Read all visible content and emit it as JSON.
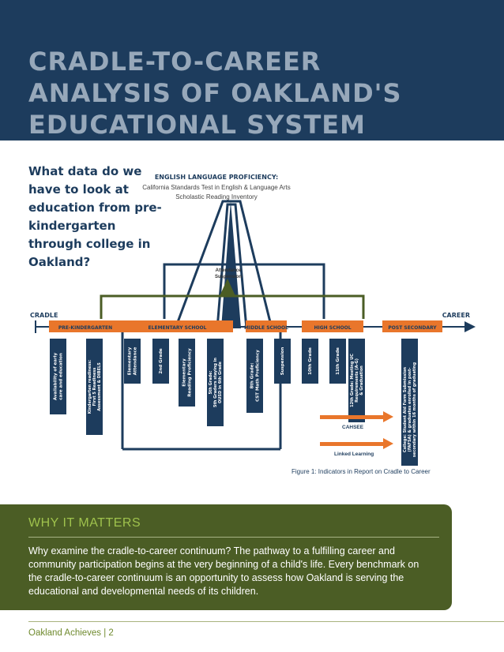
{
  "title_lines": [
    "CRADLE-TO-CAREER",
    "ANALYSIS OF OAKLAND'S",
    "EDUCATIONAL SYSTEM"
  ],
  "question": "What data do we have to look at education from pre-kindergarten through college in Oakland?",
  "diagram": {
    "top_title": "ENGLISH LANGUAGE PROFICIENCY:",
    "top_line1": "California Standards Test in English & Language Arts",
    "top_line2": "Scholastic Reading Inventory",
    "center_line1": "Attendance",
    "center_line2": "Suspension",
    "cradle": "CRADLE",
    "career": "CAREER",
    "stages": [
      "PRE-KINDERGARTEN",
      "ELEMENTARY SCHOOL",
      "MIDDLE SCHOOL",
      "HIGH SCHOOL",
      "POST SECONDARY"
    ],
    "indicators": [
      [
        "Availability of early",
        "care and education"
      ],
      [
        "Kindergarten readiness:",
        "First 5 Readiness",
        "Assessment & DIBELS"
      ],
      [
        "Elementary",
        "Attendance"
      ],
      [
        "2nd Grade"
      ],
      [
        "Elementary",
        "Reading Proficiency"
      ],
      [
        "5th Grade:",
        "5th Graders staying in",
        "OUSD in 6th Grade"
      ],
      [
        "8th Grade:",
        "CST Math Proficiency"
      ],
      [
        "Suspension"
      ],
      [
        "10th Grade"
      ],
      [
        "11th Grade"
      ],
      [
        "12th Grade: Meeting UC",
        "Requirements (A-G)",
        "& Graduation"
      ],
      [
        "College: Student Aid Form Submission",
        "(FAFSA) & graduates enrolled in post-",
        "secondary within 16 months of graduating"
      ]
    ],
    "cahsee": "CAHSEE",
    "linked_learning": "Linked Learning",
    "colors": {
      "navy": "#1d3c5d",
      "green": "#4b5d25",
      "orange": "#e9762b"
    }
  },
  "caption": "Figure 1: Indicators in Report on Cradle to Career",
  "why": {
    "title": "WHY IT MATTERS",
    "body": "Why examine the cradle-to-career continuum? The pathway to a fulfilling career and community participation begins at the very beginning of a child's life. Every benchmark on the cradle-to-career continuum is an opportunity to assess how Oakland is serving the educational and developmental needs of its children."
  },
  "footer": "Oakland Achieves | 2"
}
